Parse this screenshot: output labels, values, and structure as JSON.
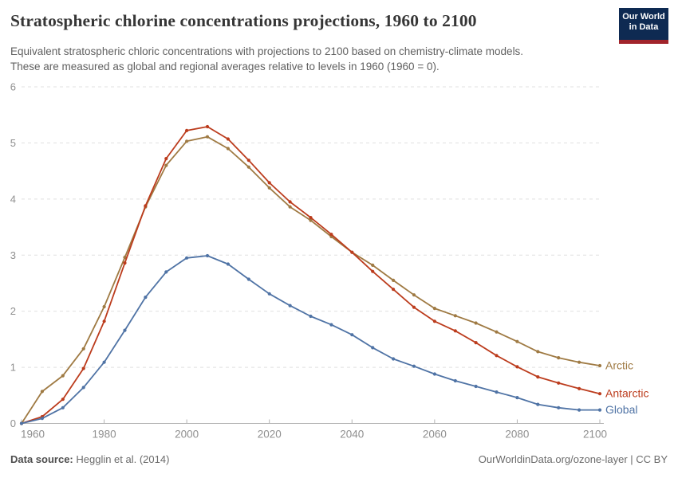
{
  "header": {
    "title": "Stratospheric chlorine concentrations projections, 1960 to 2100",
    "subtitle_line1": "Equivalent stratospheric chloric concentrations with projections to 2100 based on chemistry-climate models.",
    "subtitle_line2": "These are measured as global and regional averages relative to levels in 1960 (1960 = 0).",
    "logo": {
      "line1": "Our World",
      "line2": "in Data",
      "bg_color": "#0E2A52",
      "accent_color": "#A1242B"
    }
  },
  "chart_data": {
    "type": "line",
    "title": "Stratospheric chlorine concentrations projections, 1960 to 2100",
    "xlabel": "",
    "ylabel": "",
    "xlim": [
      1960,
      2100
    ],
    "ylim": [
      0,
      6
    ],
    "xticks": [
      1960,
      1980,
      2000,
      2020,
      2040,
      2060,
      2080,
      2100
    ],
    "yticks": [
      0,
      1,
      2,
      3,
      4,
      5,
      6
    ],
    "grid": "horizontal-dashed",
    "legend_position": "end-of-line-labels",
    "x": [
      1960,
      1965,
      1970,
      1975,
      1980,
      1985,
      1990,
      1995,
      2000,
      2005,
      2010,
      2015,
      2020,
      2025,
      2030,
      2035,
      2040,
      2045,
      2050,
      2055,
      2060,
      2065,
      2070,
      2075,
      2080,
      2085,
      2090,
      2095,
      2100
    ],
    "series": [
      {
        "name": "Arctic",
        "color": "#9F7A43",
        "values": [
          0,
          0.57,
          0.85,
          1.33,
          2.08,
          2.96,
          3.86,
          4.6,
          5.03,
          5.11,
          4.9,
          4.57,
          4.2,
          3.86,
          3.62,
          3.33,
          3.05,
          2.82,
          2.55,
          2.29,
          2.05,
          1.92,
          1.79,
          1.63,
          1.46,
          1.28,
          1.17,
          1.09,
          1.03
        ]
      },
      {
        "name": "Antarctic",
        "color": "#BC3C1D",
        "values": [
          0,
          0.12,
          0.43,
          0.98,
          1.82,
          2.86,
          3.88,
          4.72,
          5.22,
          5.29,
          5.07,
          4.69,
          4.29,
          3.95,
          3.67,
          3.37,
          3.05,
          2.71,
          2.39,
          2.07,
          1.82,
          1.65,
          1.44,
          1.21,
          1.01,
          0.83,
          0.72,
          0.62,
          0.53
        ]
      },
      {
        "name": "Global",
        "color": "#4F73A5",
        "values": [
          0,
          0.09,
          0.28,
          0.64,
          1.09,
          1.66,
          2.25,
          2.7,
          2.95,
          2.99,
          2.84,
          2.57,
          2.31,
          2.1,
          1.91,
          1.76,
          1.58,
          1.35,
          1.15,
          1.02,
          0.88,
          0.76,
          0.66,
          0.56,
          0.46,
          0.34,
          0.28,
          0.24,
          0.24
        ]
      }
    ],
    "axis_colors": {
      "tick_text": "#8f8f8f",
      "axis_line": "#b3b3b3",
      "gridline": "#e0e0e0"
    }
  },
  "footer": {
    "datasource_label": "Data source:",
    "datasource_value": " Hegglin et al. (2014)",
    "link": "OurWorldinData.org/ozone-layer | CC BY"
  }
}
